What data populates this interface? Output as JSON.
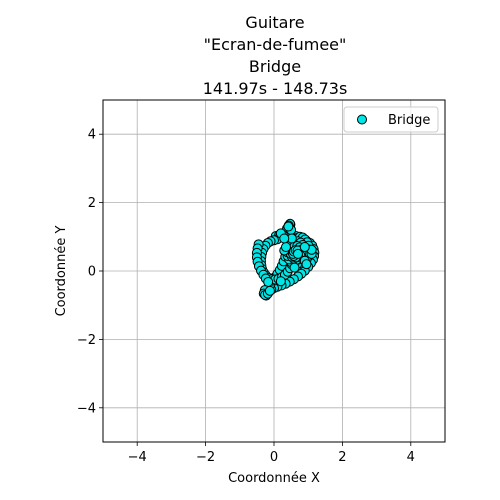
{
  "chart_data": {
    "type": "scatter",
    "title_lines": [
      "Guitare",
      "\"Ecran-de-fumee\"",
      "Bridge",
      "141.97s - 148.73s"
    ],
    "xlabel": "Coordonnée X",
    "ylabel": "Coordonnée Y",
    "xlim": [
      -5,
      5
    ],
    "ylim": [
      -5,
      5
    ],
    "xticks": [
      -4,
      -2,
      0,
      2,
      4
    ],
    "yticks": [
      -4,
      -2,
      0,
      2,
      4
    ],
    "tick_labels_x": [
      "−4",
      "−2",
      "0",
      "2",
      "4"
    ],
    "tick_labels_y": [
      "−4",
      "−2",
      "0",
      "2",
      "4"
    ],
    "grid": true,
    "legend": {
      "position": "top-right",
      "entries": [
        "Bridge"
      ]
    },
    "series": [
      {
        "name": "Bridge",
        "color": "#00e5e5",
        "edgecolor": "#000000",
        "points": [
          [
            0.05,
            1.02
          ],
          [
            0.15,
            1.05
          ],
          [
            0.25,
            1.07
          ],
          [
            0.35,
            1.08
          ],
          [
            0.45,
            1.08
          ],
          [
            0.55,
            1.06
          ],
          [
            0.65,
            1.02
          ],
          [
            0.75,
            0.98
          ],
          [
            0.85,
            0.93
          ],
          [
            0.95,
            0.88
          ],
          [
            1.05,
            0.82
          ],
          [
            1.12,
            0.74
          ],
          [
            1.16,
            0.64
          ],
          [
            1.18,
            0.54
          ],
          [
            1.17,
            0.43
          ],
          [
            1.14,
            0.33
          ],
          [
            1.08,
            0.23
          ],
          [
            1.0,
            0.12
          ],
          [
            0.9,
            0.01
          ],
          [
            0.8,
            -0.08
          ],
          [
            0.7,
            -0.16
          ],
          [
            0.58,
            -0.24
          ],
          [
            0.46,
            -0.31
          ],
          [
            0.34,
            -0.37
          ],
          [
            0.22,
            -0.42
          ],
          [
            0.1,
            -0.46
          ],
          [
            0.0,
            -0.5
          ],
          [
            -0.08,
            -0.55
          ],
          [
            -0.15,
            -0.61
          ],
          [
            -0.2,
            -0.68
          ],
          [
            -0.23,
            -0.72
          ],
          [
            -0.21,
            -0.62
          ],
          [
            -0.16,
            -0.5
          ],
          [
            -0.1,
            -0.38
          ],
          [
            -0.04,
            -0.28
          ],
          [
            0.03,
            -0.18
          ],
          [
            0.1,
            -0.08
          ],
          [
            0.17,
            0.03
          ],
          [
            0.23,
            0.15
          ],
          [
            0.28,
            0.28
          ],
          [
            0.33,
            0.42
          ],
          [
            0.37,
            0.56
          ],
          [
            0.4,
            0.7
          ],
          [
            0.43,
            0.84
          ],
          [
            0.45,
            0.98
          ],
          [
            0.46,
            1.12
          ],
          [
            0.47,
            1.26
          ],
          [
            0.48,
            1.36
          ],
          [
            0.47,
            1.38
          ],
          [
            0.43,
            1.33
          ],
          [
            0.38,
            1.24
          ],
          [
            0.33,
            1.14
          ],
          [
            0.26,
            1.05
          ],
          [
            0.18,
            0.98
          ],
          [
            0.1,
            0.93
          ],
          [
            0.0,
            0.9
          ],
          [
            -0.1,
            0.87
          ],
          [
            -0.18,
            0.82
          ],
          [
            -0.25,
            0.74
          ],
          [
            -0.31,
            0.64
          ],
          [
            -0.35,
            0.53
          ],
          [
            -0.37,
            0.41
          ],
          [
            -0.38,
            0.29
          ],
          [
            -0.37,
            0.17
          ],
          [
            -0.35,
            0.06
          ],
          [
            -0.3,
            -0.04
          ],
          [
            -0.24,
            -0.13
          ],
          [
            -0.16,
            -0.2
          ],
          [
            -0.07,
            -0.24
          ],
          [
            0.03,
            -0.25
          ],
          [
            0.13,
            -0.23
          ],
          [
            0.23,
            -0.18
          ],
          [
            0.32,
            -0.11
          ],
          [
            0.4,
            -0.02
          ],
          [
            0.47,
            0.08
          ],
          [
            0.52,
            0.19
          ],
          [
            0.55,
            0.3
          ],
          [
            0.57,
            0.42
          ],
          [
            0.58,
            0.54
          ],
          [
            0.59,
            0.66
          ],
          [
            0.61,
            0.78
          ],
          [
            0.64,
            0.89
          ],
          [
            0.69,
            0.97
          ],
          [
            0.76,
            1.0
          ],
          [
            0.84,
            0.98
          ],
          [
            0.91,
            0.92
          ],
          [
            0.97,
            0.84
          ],
          [
            1.01,
            0.74
          ],
          [
            1.03,
            0.63
          ],
          [
            1.03,
            0.52
          ],
          [
            1.0,
            0.42
          ],
          [
            0.95,
            0.33
          ],
          [
            0.87,
            0.26
          ],
          [
            0.78,
            0.22
          ],
          [
            0.68,
            0.2
          ],
          [
            0.58,
            0.21
          ],
          [
            0.5,
            0.26
          ],
          [
            0.44,
            0.34
          ],
          [
            0.4,
            0.44
          ],
          [
            0.39,
            0.55
          ],
          [
            0.41,
            0.66
          ],
          [
            0.46,
            0.76
          ],
          [
            0.53,
            0.83
          ],
          [
            0.61,
            0.87
          ],
          [
            0.7,
            0.87
          ],
          [
            0.78,
            0.83
          ],
          [
            0.84,
            0.76
          ],
          [
            0.88,
            0.67
          ],
          [
            0.89,
            0.57
          ],
          [
            0.87,
            0.47
          ],
          [
            0.82,
            0.39
          ],
          [
            0.74,
            0.34
          ],
          [
            0.66,
            0.33
          ],
          [
            0.58,
            0.36
          ],
          [
            0.52,
            0.42
          ],
          [
            0.49,
            0.5
          ],
          [
            0.5,
            0.59
          ],
          [
            0.54,
            0.67
          ],
          [
            0.6,
            0.72
          ],
          [
            0.68,
            0.73
          ],
          [
            0.75,
            0.69
          ],
          [
            0.79,
            0.62
          ],
          [
            0.8,
            0.54
          ],
          [
            0.77,
            0.46
          ],
          [
            0.71,
            0.41
          ],
          [
            0.64,
            0.4
          ],
          [
            0.58,
            0.44
          ],
          [
            0.56,
            0.5
          ],
          [
            0.58,
            0.57
          ],
          [
            0.63,
            0.61
          ],
          [
            0.69,
            0.6
          ],
          [
            -0.45,
            0.78
          ],
          [
            -0.48,
            0.66
          ],
          [
            -0.5,
            0.53
          ],
          [
            -0.5,
            0.4
          ],
          [
            -0.48,
            0.27
          ],
          [
            -0.44,
            0.14
          ],
          [
            -0.38,
            0.01
          ],
          [
            -0.31,
            -0.11
          ],
          [
            -0.24,
            -0.22
          ],
          [
            -0.17,
            -0.32
          ],
          [
            -0.27,
            -0.56
          ],
          [
            -0.3,
            -0.66
          ],
          [
            -0.26,
            -0.7
          ],
          [
            -0.18,
            -0.66
          ],
          [
            -0.12,
            -0.58
          ],
          [
            0.3,
            0.6
          ],
          [
            0.35,
            0.7
          ],
          [
            0.9,
            0.3
          ],
          [
            0.95,
            0.2
          ],
          [
            1.1,
            0.5
          ],
          [
            1.1,
            0.62
          ],
          [
            0.2,
            1.1
          ],
          [
            0.5,
            1.2
          ],
          [
            0.42,
            1.3
          ],
          [
            0.52,
            0.95
          ],
          [
            0.3,
            0.95
          ],
          [
            0.9,
            0.7
          ],
          [
            0.7,
            0.5
          ],
          [
            0.6,
            0.1
          ],
          [
            0.2,
            -0.3
          ]
        ]
      }
    ]
  }
}
